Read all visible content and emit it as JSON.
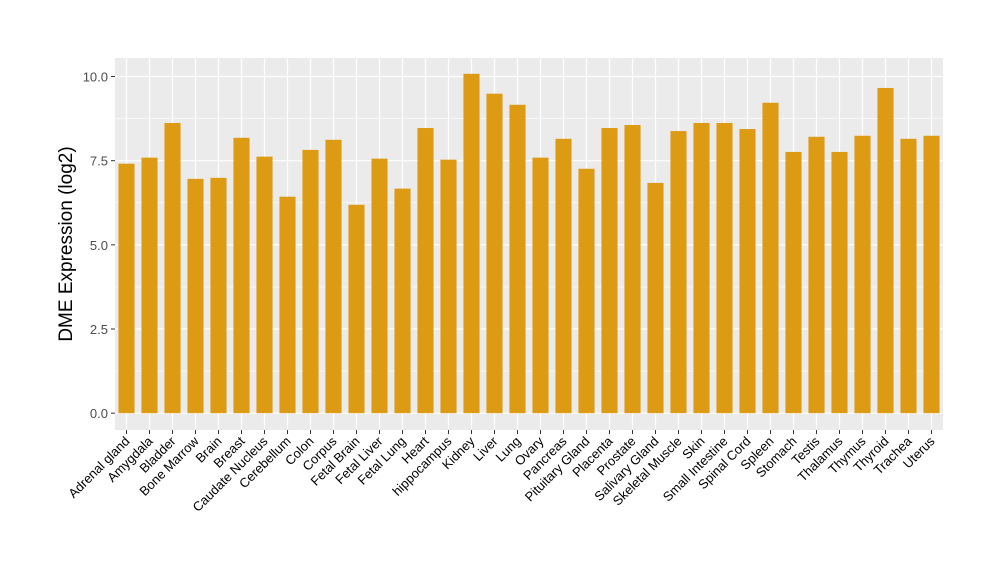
{
  "chart_data": {
    "type": "bar",
    "title": "",
    "xlabel": "",
    "ylabel": "DME Expression (log2)",
    "ylim": [
      -0.5,
      10.55
    ],
    "yticks": [
      0,
      2.5,
      5,
      7.5,
      10
    ],
    "ytick_labels": [
      "0.0",
      "2.5",
      "5.0",
      "7.5",
      "10.0"
    ],
    "grid": true,
    "bar_color": "#DD9A13",
    "panel_color": "#EBEBEB",
    "categories": [
      "Adrenal gland",
      "Amygdala",
      "Bladder",
      "Bone Marrow",
      "Brain",
      "Breast",
      "Caudate Nucleus",
      "Cerebellum",
      "Colon",
      "Corpus",
      "Fetal Brain",
      "Fetal Liver",
      "Fetal Lung",
      "Heart",
      "hippocampus",
      "Kidney",
      "Liver",
      "Lung",
      "Ovary",
      "Pancreas",
      "Pituitary Gland",
      "Placenta",
      "Prostate",
      "Salivary Gland",
      "Skeletal Muscle",
      "Skin",
      "Small Intestine",
      "Spinal Cord",
      "Spleen",
      "Stomach",
      "Testis",
      "Thalamus",
      "Thymus",
      "Thyroid",
      "Trachea",
      "Uterus"
    ],
    "values": [
      7.41,
      7.59,
      8.62,
      6.96,
      6.99,
      8.18,
      7.62,
      6.43,
      7.82,
      8.12,
      6.19,
      7.56,
      6.67,
      8.47,
      7.53,
      10.08,
      9.49,
      9.16,
      7.59,
      8.15,
      7.26,
      8.47,
      8.56,
      6.84,
      8.38,
      8.62,
      8.62,
      8.44,
      9.22,
      7.76,
      8.21,
      7.76,
      8.24,
      9.66,
      8.15,
      8.24
    ]
  }
}
